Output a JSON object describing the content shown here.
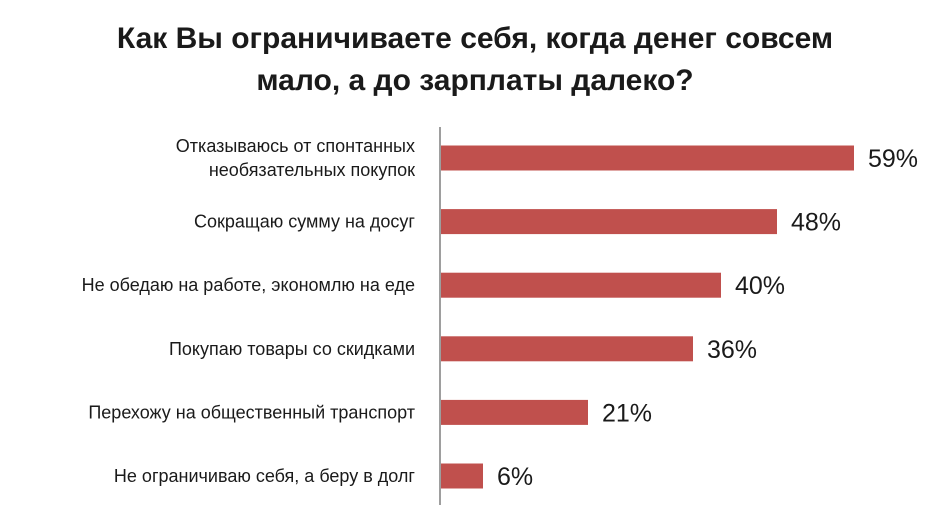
{
  "title_lines": [
    "Как Вы ограничиваете себя, когда денег совсем",
    "мало, а до зарплаты далеко?"
  ],
  "colors": {
    "bar": "#c0504d",
    "axis": "#7f7f7f",
    "text": "#1a1a1a"
  },
  "chart_data": {
    "type": "bar",
    "orientation": "horizontal",
    "title": "Как Вы ограничиваете себя, когда денег совсем мало, а до зарплаты далеко?",
    "categories": [
      [
        "Отказываюсь от спонтанных",
        "необязательных покупок"
      ],
      [
        "Сокращаю сумму на досуг"
      ],
      [
        "Не обедаю на работе, экономлю на еде"
      ],
      [
        "Покупаю товары со скидками"
      ],
      [
        "Перехожу на общественный транспорт"
      ],
      [
        "Не ограничиваю себя, а беру в долг"
      ]
    ],
    "values": [
      59,
      48,
      40,
      36,
      21,
      6
    ],
    "value_labels": [
      "59%",
      "48%",
      "40%",
      "36%",
      "21%",
      "6%"
    ],
    "unit": "%",
    "xlim": [
      0,
      60
    ],
    "grid": false,
    "legend": "none"
  }
}
